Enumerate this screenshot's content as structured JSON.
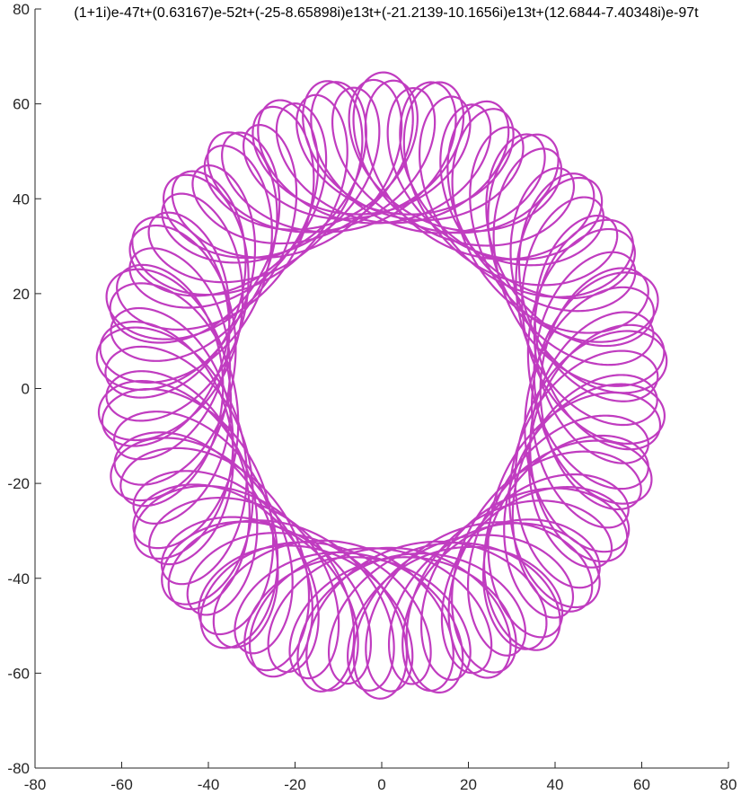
{
  "chart_data": {
    "type": "line",
    "title": "(1+1i)e-47t+(0.63167)e-52t+(-25-8.65898i)e13t+(-21.2139-10.1656i)e13t+(12.6844-7.40348i)e-97t",
    "xlabel": "",
    "ylabel": "",
    "xlim": [
      -80,
      80
    ],
    "ylim": [
      -80,
      80
    ],
    "xticks": [
      -80,
      -60,
      -40,
      -20,
      0,
      20,
      40,
      60,
      80
    ],
    "yticks": [
      -80,
      -60,
      -40,
      -20,
      0,
      20,
      40,
      60,
      80
    ],
    "xtick_labels": [
      "-80",
      "-60",
      "-40",
      "-20",
      "0",
      "20",
      "40",
      "60",
      "80"
    ],
    "ytick_labels": [
      "-80",
      "-60",
      "-40",
      "-20",
      "0",
      "20",
      "40",
      "60",
      "80"
    ],
    "grid": false,
    "legend": "none",
    "line_color": "#c03cc0",
    "axis_color": "#262626",
    "series": [
      {
        "terms": [
          {
            "re": 1,
            "im": 1,
            "freq": -47
          },
          {
            "re": 0.63167,
            "im": 0,
            "freq": -52
          },
          {
            "re": -25,
            "im": -8.65898,
            "freq": 13
          },
          {
            "re": -21.2139,
            "im": -10.1656,
            "freq": 13
          },
          {
            "re": 12.6844,
            "im": -7.40348,
            "freq": -97
          }
        ],
        "t_range": [
          0,
          6.283185307179586
        ]
      }
    ]
  }
}
